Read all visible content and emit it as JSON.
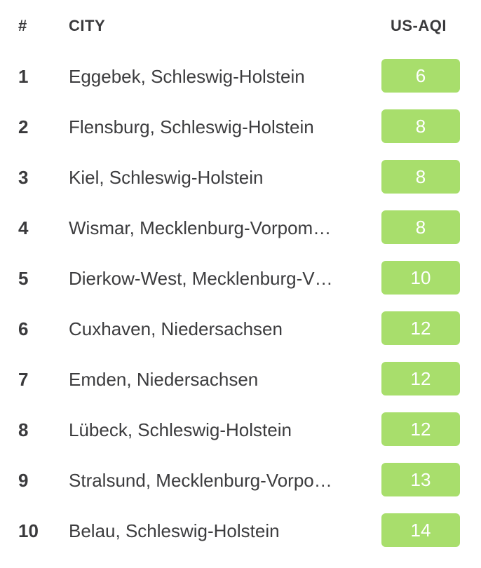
{
  "header": {
    "rank_label": "#",
    "city_label": "CITY",
    "aqi_label": "US-AQI"
  },
  "badge_color": "#a8de6c",
  "rows": [
    {
      "rank": "1",
      "city": "Eggebek, Schleswig-Holstein",
      "aqi": "6"
    },
    {
      "rank": "2",
      "city": "Flensburg, Schleswig-Holstein",
      "aqi": "8"
    },
    {
      "rank": "3",
      "city": "Kiel, Schleswig-Holstein",
      "aqi": "8"
    },
    {
      "rank": "4",
      "city": "Wismar, Mecklenburg-Vorpom…",
      "aqi": "8"
    },
    {
      "rank": "5",
      "city": "Dierkow-West, Mecklenburg-V…",
      "aqi": "10"
    },
    {
      "rank": "6",
      "city": "Cuxhaven, Niedersachsen",
      "aqi": "12"
    },
    {
      "rank": "7",
      "city": "Emden, Niedersachsen",
      "aqi": "12"
    },
    {
      "rank": "8",
      "city": "Lübeck, Schleswig-Holstein",
      "aqi": "12"
    },
    {
      "rank": "9",
      "city": "Stralsund, Mecklenburg-Vorpo…",
      "aqi": "13"
    },
    {
      "rank": "10",
      "city": "Belau, Schleswig-Holstein",
      "aqi": "14"
    }
  ]
}
